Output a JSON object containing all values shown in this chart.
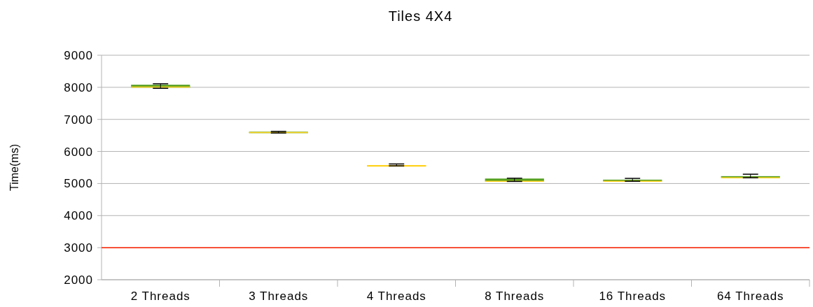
{
  "chart_data": {
    "type": "box",
    "title": "Tiles 4X4",
    "ylabel": "Time(ms)",
    "categories": [
      "2 Threads",
      "3 Threads",
      "4 Threads",
      "8 Threads",
      "16 Threads",
      "64 Threads"
    ],
    "boxes": [
      {
        "low": 7970,
        "q1": 7990,
        "median": 8020,
        "q3": 8080,
        "high": 8110
      },
      {
        "low": 6575,
        "q1": 6585,
        "median": 6600,
        "q3": 6615,
        "high": 6625
      },
      {
        "low": 5550,
        "q1": 5560,
        "median": 5570,
        "q3": 5570,
        "high": 5610
      },
      {
        "low": 5065,
        "q1": 5070,
        "median": 5080,
        "q3": 5155,
        "high": 5165
      },
      {
        "low": 5070,
        "q1": 5080,
        "median": 5080,
        "q3": 5120,
        "high": 5160
      },
      {
        "low": 5180,
        "q1": 5190,
        "median": 5190,
        "q3": 5230,
        "high": 5290
      }
    ],
    "colors": [
      "#56a020",
      "#56a020",
      "#ffd320",
      "#56a020",
      "#56a020",
      "#56a020"
    ],
    "ylim": [
      2000,
      9000
    ],
    "yticks": [
      2000,
      3000,
      4000,
      5000,
      6000,
      7000,
      8000,
      9000
    ],
    "grid": "y",
    "ref_lines": [
      {
        "axis": "y",
        "value": 3000,
        "color": "#ff2000"
      }
    ]
  }
}
